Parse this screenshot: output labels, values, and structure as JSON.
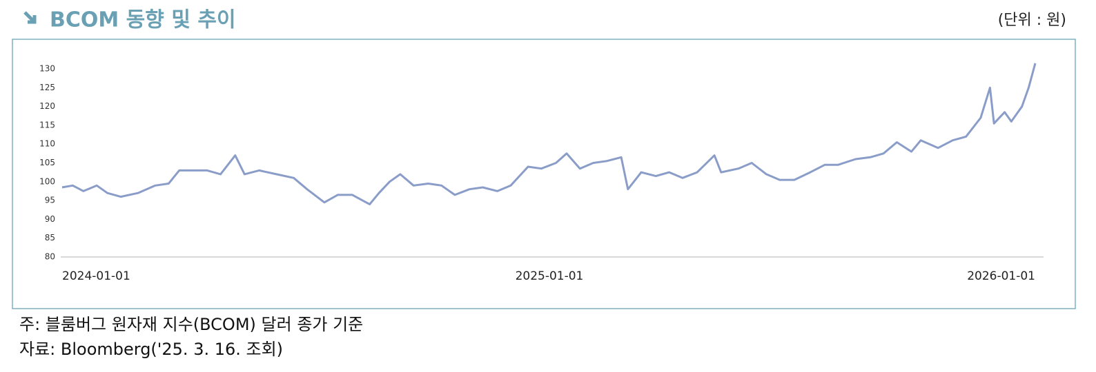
{
  "chart_data": {
    "type": "line",
    "title": "BCOM 동향 및 추이",
    "unit_label": "(단위 : 원)",
    "x": [
      "2024-01-01",
      "2024-01-09",
      "2024-01-17",
      "2024-01-27",
      "2024-02-04",
      "2024-02-14",
      "2024-02-27",
      "2024-03-11",
      "2024-03-21",
      "2024-03-29",
      "2024-04-08",
      "2024-04-19",
      "2024-04-29",
      "2024-05-10",
      "2024-05-17",
      "2024-05-28",
      "2024-06-10",
      "2024-06-23",
      "2024-07-03",
      "2024-07-16",
      "2024-07-26",
      "2024-08-06",
      "2024-08-19",
      "2024-08-26",
      "2024-09-03",
      "2024-09-11",
      "2024-09-21",
      "2024-10-02",
      "2024-10-12",
      "2024-10-22",
      "2024-11-02",
      "2024-11-12",
      "2024-11-23",
      "2024-12-03",
      "2024-12-16",
      "2024-12-26",
      "2025-01-06",
      "2025-01-14",
      "2025-01-24",
      "2025-02-03",
      "2025-02-13",
      "2025-02-24",
      "2025-03-01",
      "2025-03-11",
      "2025-03-22",
      "2025-04-01",
      "2025-04-11",
      "2025-04-22",
      "2025-05-05",
      "2025-05-10",
      "2025-05-23",
      "2025-06-02",
      "2025-06-13",
      "2025-06-23",
      "2025-07-04",
      "2025-07-16",
      "2025-07-27",
      "2025-08-06",
      "2025-08-19",
      "2025-08-30",
      "2025-09-09",
      "2025-09-19",
      "2025-09-30",
      "2025-10-07",
      "2025-10-20",
      "2025-10-31",
      "2025-11-10",
      "2025-11-21",
      "2025-11-28",
      "2025-12-01",
      "2025-12-09",
      "2025-12-14",
      "2025-12-22",
      "2025-12-27",
      "2026-01-01"
    ],
    "series": [
      {
        "color": "#8a9cc8",
        "values": [
          98.5,
          99,
          97.5,
          99,
          97,
          96,
          97,
          99,
          99.5,
          103,
          103,
          103,
          102,
          107,
          102,
          103,
          102,
          101,
          98,
          94.5,
          96.5,
          96.5,
          94,
          97,
          100,
          102,
          99,
          99.5,
          99,
          96.5,
          98,
          98.5,
          97.5,
          99,
          104,
          103.5,
          105,
          107.5,
          103.5,
          105,
          105.5,
          106.5,
          98,
          102.5,
          101.5,
          102.5,
          101,
          102.5,
          107,
          102.5,
          103.5,
          105,
          102,
          100.5,
          100.5,
          102.5,
          104.5,
          104.5,
          106,
          106.5,
          107.5,
          110.5,
          108,
          111,
          109,
          111,
          112,
          117,
          125,
          115.5,
          118.5,
          116,
          120,
          125,
          131.5
        ]
      }
    ],
    "xlim": [
      "2024-01-01",
      "2026-01-01"
    ],
    "xticks": [
      "2024-01-01",
      "2025-01-01",
      "2026-01-01"
    ],
    "ylim": [
      80,
      130
    ],
    "yticks": [
      80,
      85,
      90,
      95,
      100,
      105,
      110,
      115,
      120,
      125,
      130
    ],
    "grid": false
  },
  "notes": [
    "주: 블룸버그 원자재 지수(BCOM) 달러 종가 기준",
    "자료: Bloomberg('25. 3. 16. 조회)"
  ]
}
